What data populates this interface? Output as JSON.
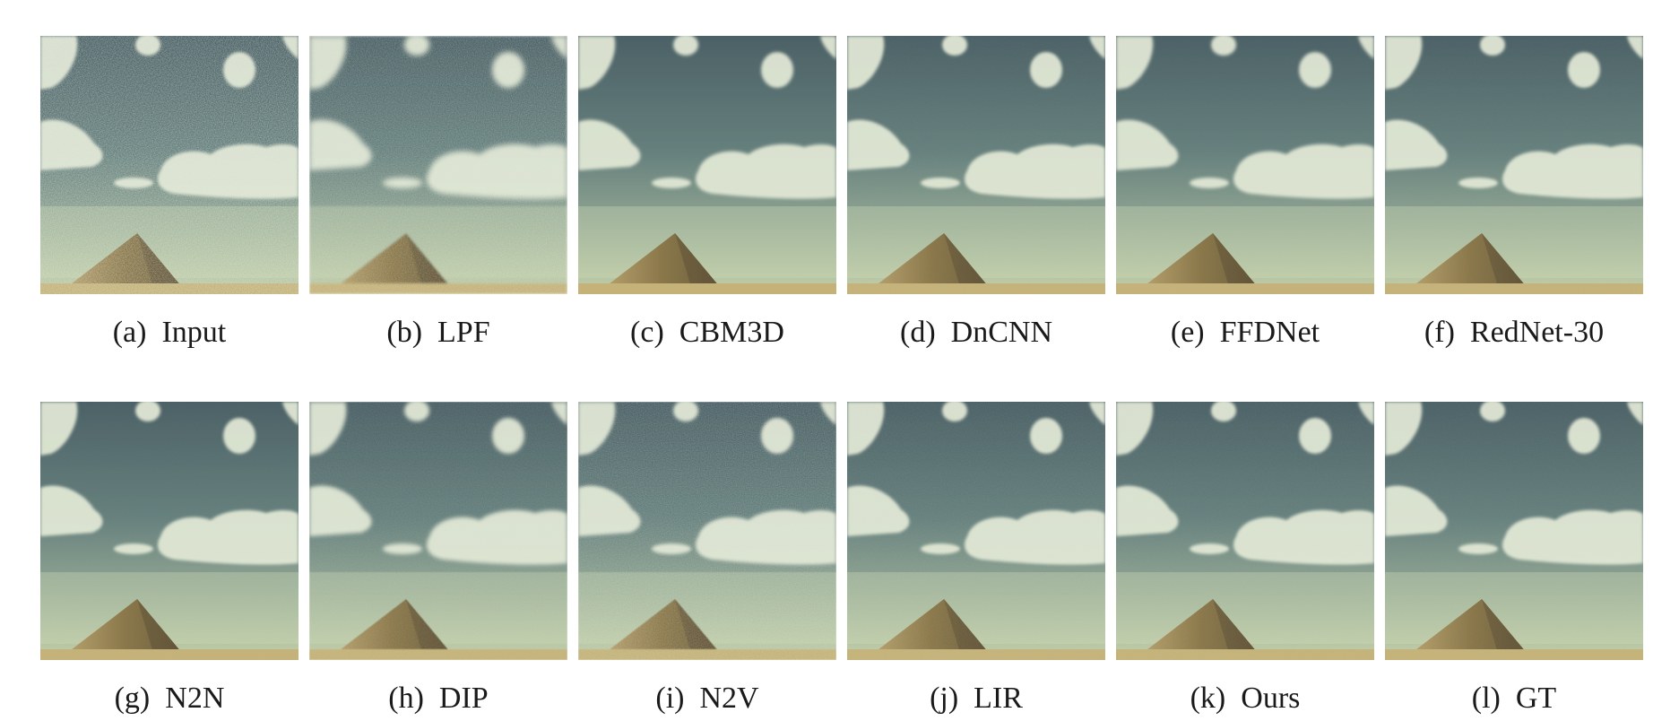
{
  "figure": {
    "panels": [
      {
        "letter": "(a)",
        "label": "Input",
        "noise": 0.62,
        "blur": 0.0
      },
      {
        "letter": "(b)",
        "label": "LPF",
        "noise": 0.42,
        "blur": 1.2
      },
      {
        "letter": "(c)",
        "label": "CBM3D",
        "noise": 0.0,
        "blur": 0.3
      },
      {
        "letter": "(d)",
        "label": "DnCNN",
        "noise": 0.06,
        "blur": 0.2
      },
      {
        "letter": "(e)",
        "label": "FFDNet",
        "noise": 0.03,
        "blur": 0.3
      },
      {
        "letter": "(f)",
        "label": "RedNet-30",
        "noise": 0.05,
        "blur": 0.2
      },
      {
        "letter": "(g)",
        "label": "N2N",
        "noise": 0.03,
        "blur": 0.2
      },
      {
        "letter": "(h)",
        "label": "DIP",
        "noise": 0.18,
        "blur": 0.6
      },
      {
        "letter": "(i)",
        "label": "N2V",
        "noise": 0.34,
        "blur": 0.4
      },
      {
        "letter": "(j)",
        "label": "LIR",
        "noise": 0.12,
        "blur": 0.2
      },
      {
        "letter": "(k)",
        "label": "Ours",
        "noise": 0.09,
        "blur": 0.1
      },
      {
        "letter": "(l)",
        "label": "GT",
        "noise": 0.07,
        "blur": 0.0
      }
    ]
  }
}
